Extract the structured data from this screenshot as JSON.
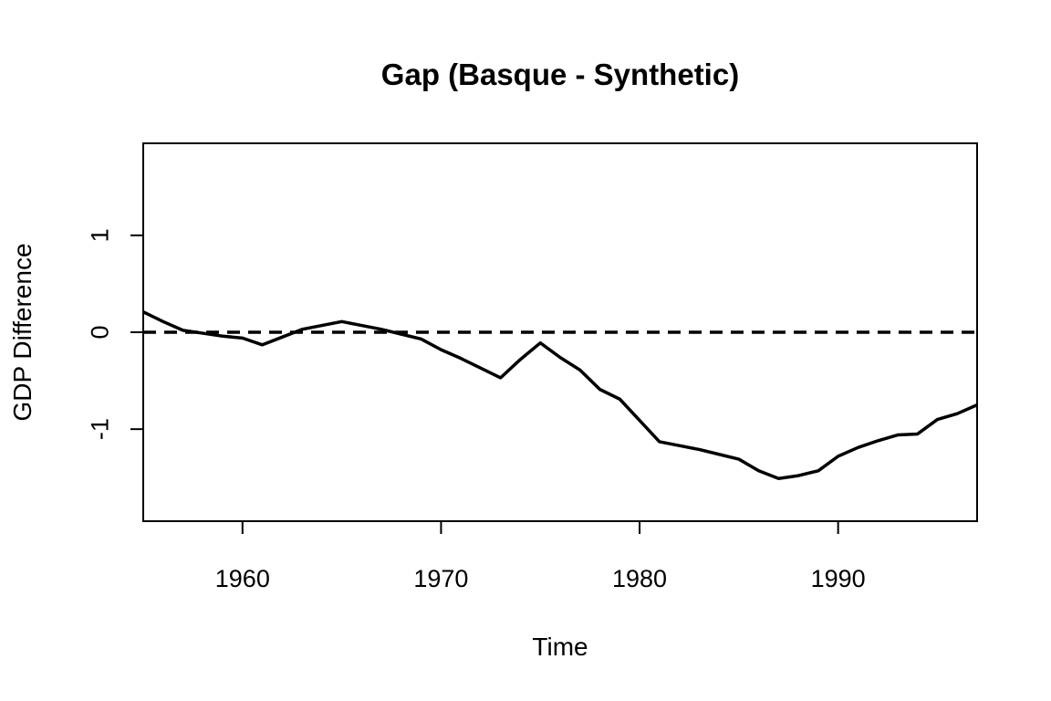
{
  "chart_data": {
    "type": "line",
    "title": "Gap (Basque - Synthetic)",
    "xlabel": "Time",
    "ylabel": "GDP Difference",
    "xlim": [
      1955,
      1997
    ],
    "ylim": [
      -1.95,
      1.95
    ],
    "xticks": [
      1960,
      1970,
      1980,
      1990
    ],
    "yticks": [
      -1,
      0,
      1
    ],
    "reference_line": {
      "y": 0,
      "style": "dashed"
    },
    "grid": false,
    "series": [
      {
        "x": [
          1955,
          1956,
          1957,
          1958,
          1959,
          1960,
          1961,
          1962,
          1963,
          1964,
          1965,
          1966,
          1967,
          1968,
          1969,
          1970,
          1971,
          1972,
          1973,
          1974,
          1975,
          1976,
          1977,
          1978,
          1979,
          1980,
          1981,
          1982,
          1983,
          1984,
          1985,
          1986,
          1987,
          1988,
          1989,
          1990,
          1991,
          1992,
          1993,
          1994,
          1995,
          1996,
          1997
        ],
        "y": [
          0.21,
          0.11,
          0.02,
          -0.01,
          -0.04,
          -0.06,
          -0.13,
          -0.05,
          0.03,
          0.07,
          0.11,
          0.07,
          0.03,
          -0.02,
          -0.07,
          -0.18,
          -0.27,
          -0.37,
          -0.47,
          -0.28,
          -0.11,
          -0.26,
          -0.39,
          -0.59,
          -0.69,
          -0.91,
          -1.13,
          -1.17,
          -1.21,
          -1.26,
          -1.31,
          -1.43,
          -1.51,
          -1.48,
          -1.43,
          -1.28,
          -1.19,
          -1.12,
          -1.06,
          -1.05,
          -0.9,
          -0.84,
          -0.75
        ]
      }
    ]
  }
}
